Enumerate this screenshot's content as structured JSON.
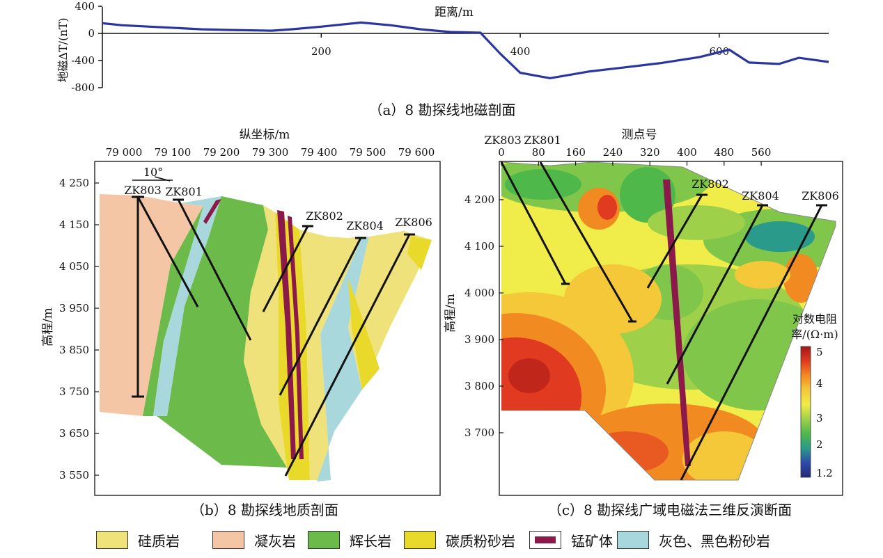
{
  "figure": {
    "caption_a": "（a）8 勘探线地磁剖面",
    "caption_b": "（b）8 勘探线地质剖面",
    "caption_c": "（c）8 勘探线广域电磁法三维反演断面"
  },
  "legend": {
    "items": [
      {
        "label": "硅质岩",
        "color": "#f0e27a"
      },
      {
        "label": "凝灰岩",
        "color": "#f5c6a5"
      },
      {
        "label": "辉长岩",
        "color": "#6cbb4a"
      },
      {
        "label": "碳质粉砂岩",
        "color": "#e8d92a"
      },
      {
        "label": "锰矿体",
        "color": "#8b1a4a"
      },
      {
        "label": "灰色、黑色粉砂岩",
        "color": "#a8d8dc"
      }
    ]
  },
  "chart_data": [
    {
      "type": "line",
      "panel": "a",
      "xlabel": "距离/m",
      "ylabel": "地磁ΔT/(nT)",
      "xticks": [
        200,
        400,
        600
      ],
      "yticks": [
        400,
        0,
        -400,
        -800
      ],
      "xlim": [
        -20,
        710
      ],
      "ylim": [
        -800,
        400
      ],
      "series": [
        {
          "x": [
            -20,
            0,
            40,
            80,
            110,
            150,
            170,
            200,
            220,
            240,
            270,
            300,
            330,
            360,
            380,
            400,
            430,
            470,
            500,
            540,
            580,
            610,
            630,
            660,
            680,
            710
          ],
          "y": [
            150,
            120,
            90,
            60,
            50,
            40,
            60,
            100,
            130,
            160,
            120,
            60,
            20,
            10,
            -300,
            -580,
            -660,
            -560,
            -510,
            -440,
            -350,
            -240,
            -430,
            -450,
            -360,
            -420
          ],
          "color": "#2b35a0"
        }
      ]
    },
    {
      "type": "geologic-section",
      "panel": "b",
      "top_label": "纵坐标/m",
      "ylabel": "高程/m",
      "xticks": [
        "79 000",
        "79 100",
        "79 200",
        "79 300",
        "79 400",
        "79 500",
        "79 600"
      ],
      "yticks": [
        "4 250",
        "4 150",
        "4 050",
        "3 950",
        "3 850",
        "3 750",
        "3 650",
        "3 550"
      ],
      "dip_label": "10°",
      "boreholes": [
        "ZK803",
        "ZK801",
        "ZK802",
        "ZK804",
        "ZK806"
      ]
    },
    {
      "type": "resistivity-section",
      "panel": "c",
      "top_label": "测点号",
      "ylabel": "高程/m",
      "xticks": [
        "0",
        "80",
        "160",
        "240",
        "320",
        "400",
        "480",
        "560"
      ],
      "yticks": [
        "4 200",
        "4 100",
        "4 000",
        "3 900",
        "3 800",
        "3 700"
      ],
      "boreholes": [
        "ZK803",
        "ZK801",
        "ZK802",
        "ZK804",
        "ZK806"
      ],
      "colorbar_title_1": "对数电阻",
      "colorbar_title_2": "率/(Ω·m)",
      "colorbar_ticks": [
        "5",
        "4",
        "3",
        "2",
        "1.2"
      ],
      "colorbar_colors": [
        "#a01818",
        "#e03a20",
        "#f28a22",
        "#f5c83a",
        "#f0ec4a",
        "#9fd04a",
        "#4fb84a",
        "#2a9a8a",
        "#2e4aa8",
        "#242a78"
      ]
    }
  ]
}
